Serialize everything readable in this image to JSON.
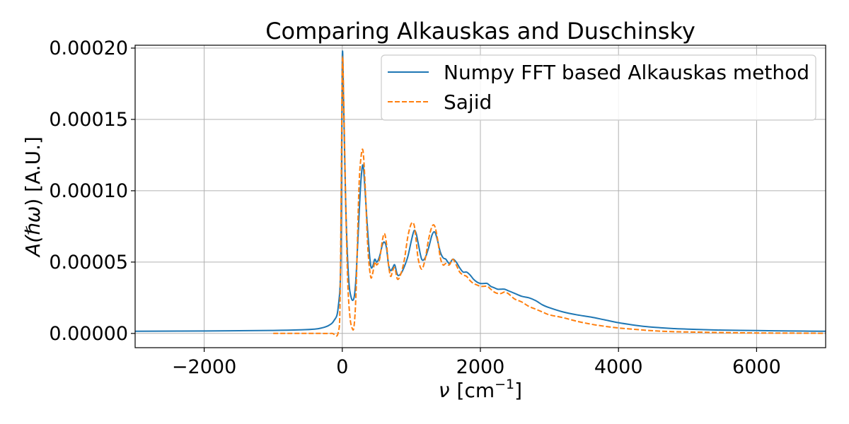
{
  "chart_data": {
    "type": "line",
    "title": "Comparing Alkauskas and Duschinsky",
    "xlabel": {
      "symbol": "ν",
      "unit": "[cm",
      "exp": "−1",
      "close": "]"
    },
    "ylabel": {
      "prefix": "A(",
      "symbol": "ℏω",
      "suffix": ") [A.U.]"
    },
    "xlim": [
      -3000,
      7000
    ],
    "ylim": [
      -1e-05,
      0.000202
    ],
    "grid": true,
    "legend_position": "top-right",
    "x_ticks": [
      {
        "value": -2000,
        "label": "−2000"
      },
      {
        "value": 0,
        "label": "0"
      },
      {
        "value": 2000,
        "label": "2000"
      },
      {
        "value": 4000,
        "label": "4000"
      },
      {
        "value": 6000,
        "label": "6000"
      }
    ],
    "y_ticks": [
      {
        "value": 0.0,
        "label": "0.00000"
      },
      {
        "value": 5e-05,
        "label": "0.00005"
      },
      {
        "value": 0.0001,
        "label": "0.00010"
      },
      {
        "value": 0.00015,
        "label": "0.00015"
      },
      {
        "value": 0.0002,
        "label": "0.00020"
      }
    ],
    "series": [
      {
        "name": "Numpy FFT based Alkauskas method",
        "color": "#1f77b4",
        "style": "solid",
        "x": [
          -3000,
          -2000,
          -1000,
          -600,
          -400,
          -300,
          -200,
          -120,
          -60,
          -20,
          0,
          20,
          50,
          90,
          130,
          170,
          200,
          240,
          270,
          300,
          330,
          370,
          410,
          440,
          470,
          500,
          540,
          580,
          610,
          640,
          670,
          700,
          730,
          760,
          800,
          850,
          900,
          950,
          1000,
          1040,
          1070,
          1100,
          1150,
          1200,
          1250,
          1300,
          1340,
          1380,
          1420,
          1460,
          1500,
          1550,
          1600,
          1650,
          1700,
          1750,
          1800,
          1850,
          1900,
          1950,
          2000,
          2050,
          2100,
          2150,
          2200,
          2250,
          2300,
          2350,
          2400,
          2450,
          2500,
          2600,
          2700,
          2800,
          2900,
          3000,
          3200,
          3400,
          3600,
          3800,
          4000,
          4200,
          4400,
          4600,
          4800,
          5000,
          5500,
          6000,
          6500,
          7000
        ],
        "y": [
          1.5e-06,
          1.7e-06,
          2.1e-06,
          2.5e-06,
          3e-06,
          3.8e-06,
          5.5e-06,
          9e-06,
          1.8e-05,
          5.5e-05,
          0.000193,
          0.00016,
          9e-05,
          4e-05,
          2.5e-05,
          2.5e-05,
          4e-05,
          8e-05,
          0.000107,
          0.000118,
          0.0001,
          7e-05,
          4.8e-05,
          4.7e-05,
          5.2e-05,
          5e-05,
          5.4e-05,
          6.2e-05,
          6.4e-05,
          6e-05,
          4.8e-05,
          4.4e-05,
          4.6e-05,
          4.8e-05,
          4.1e-05,
          4.2e-05,
          4.7e-05,
          5.4e-05,
          6.5e-05,
          7.2e-05,
          7e-05,
          6.3e-05,
          5.2e-05,
          5.3e-05,
          6e-05,
          6.9e-05,
          7.1e-05,
          6.5e-05,
          5.7e-05,
          5.3e-05,
          5.2e-05,
          4.9e-05,
          5.2e-05,
          5e-05,
          4.6e-05,
          4.3e-05,
          4.3e-05,
          4.1e-05,
          3.8e-05,
          3.6e-05,
          3.5e-05,
          3.5e-05,
          3.5e-05,
          3.3e-05,
          3.2e-05,
          3.1e-05,
          3.1e-05,
          3.1e-05,
          3e-05,
          2.9e-05,
          2.8e-05,
          2.6e-05,
          2.5e-05,
          2.3e-05,
          2e-05,
          1.8e-05,
          1.5e-05,
          1.3e-05,
          1.15e-05,
          9.5e-06,
          7.5e-06,
          6e-06,
          4.8e-06,
          4e-06,
          3.4e-06,
          3e-06,
          2.3e-06,
          2e-06,
          1.7e-06,
          1.5e-06
        ]
      },
      {
        "name": "Sajid",
        "color": "#ff7f0e",
        "style": "dashed",
        "x": [
          -1000,
          -600,
          -300,
          -150,
          -60,
          -30,
          0,
          20,
          50,
          80,
          110,
          140,
          170,
          200,
          240,
          270,
          300,
          330,
          370,
          410,
          440,
          470,
          500,
          540,
          580,
          610,
          640,
          670,
          700,
          730,
          760,
          800,
          850,
          900,
          950,
          1000,
          1040,
          1070,
          1100,
          1150,
          1200,
          1250,
          1300,
          1340,
          1380,
          1420,
          1460,
          1500,
          1550,
          1600,
          1650,
          1700,
          1750,
          1800,
          1850,
          1900,
          1950,
          2000,
          2050,
          2100,
          2150,
          2200,
          2250,
          2300,
          2350,
          2400,
          2450,
          2500,
          2600,
          2700,
          2800,
          2900,
          3000,
          3200,
          3400,
          3600,
          3800,
          4000,
          4200,
          4400,
          4600,
          4800,
          5000,
          5500,
          6000,
          6500,
          7000
        ],
        "y": [
          0.0,
          0.0,
          0.0,
          0.0,
          5e-07,
          3e-05,
          0.000186,
          0.000165,
          9e-05,
          3.5e-05,
          1.2e-05,
          4e-06,
          5e-06,
          3e-05,
          0.0001,
          0.000123,
          0.000128,
          0.000105,
          6e-05,
          4e-05,
          4.2e-05,
          5e-05,
          4.8e-05,
          5.2e-05,
          6.5e-05,
          7e-05,
          6.3e-05,
          4.8e-05,
          4e-05,
          4.4e-05,
          4.6e-05,
          3.8e-05,
          4.2e-05,
          5.2e-05,
          6.8e-05,
          7.7e-05,
          7.6e-05,
          6.5e-05,
          5.2e-05,
          4.5e-05,
          5.2e-05,
          6.6e-05,
          7.5e-05,
          7.5e-05,
          6.6e-05,
          5.3e-05,
          4.8e-05,
          4.9e-05,
          4.8e-05,
          5.2e-05,
          4.8e-05,
          4.3e-05,
          4.1e-05,
          4e-05,
          3.7e-05,
          3.5e-05,
          3.4e-05,
          3.3e-05,
          3.3e-05,
          3.3e-05,
          3.1e-05,
          2.9e-05,
          2.8e-05,
          2.8e-05,
          2.9e-05,
          2.8e-05,
          2.6e-05,
          2.4e-05,
          2.2e-05,
          1.9e-05,
          1.7e-05,
          1.5e-05,
          1.3e-05,
          1.1e-05,
          8.5e-06,
          6.5e-06,
          5e-06,
          3.8e-06,
          3e-06,
          2.2e-06,
          1.6e-06,
          1.2e-06,
          1e-06,
          6e-07,
          3e-07,
          2e-07,
          1e-07
        ]
      }
    ]
  }
}
